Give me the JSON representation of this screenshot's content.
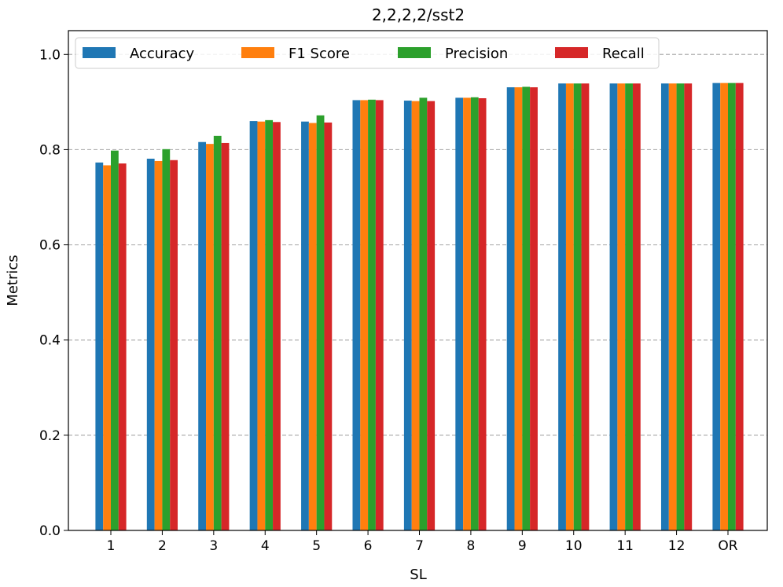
{
  "chart_data": {
    "type": "bar",
    "title": "2,2,2,2/sst2",
    "xlabel": "SL",
    "ylabel": "Metrics",
    "ylim": [
      0,
      1.05
    ],
    "yticks": [
      "0.0",
      "0.2",
      "0.4",
      "0.6",
      "0.8",
      "1.0"
    ],
    "grid": "y-dashed",
    "legend_position": "top",
    "categories": [
      "1",
      "2",
      "3",
      "4",
      "5",
      "6",
      "7",
      "8",
      "9",
      "10",
      "11",
      "12",
      "OR"
    ],
    "series": [
      {
        "name": "Accuracy",
        "color": "#1f77b4",
        "values": [
          0.773,
          0.781,
          0.816,
          0.86,
          0.859,
          0.904,
          0.903,
          0.909,
          0.931,
          0.939,
          0.939,
          0.939,
          0.94
        ]
      },
      {
        "name": "F1 Score",
        "color": "#ff7f0e",
        "values": [
          0.767,
          0.776,
          0.812,
          0.859,
          0.856,
          0.904,
          0.902,
          0.909,
          0.931,
          0.939,
          0.939,
          0.939,
          0.94
        ]
      },
      {
        "name": "Precision",
        "color": "#2ca02c",
        "values": [
          0.798,
          0.801,
          0.829,
          0.862,
          0.872,
          0.905,
          0.909,
          0.91,
          0.932,
          0.939,
          0.939,
          0.939,
          0.94
        ]
      },
      {
        "name": "Recall",
        "color": "#d62728",
        "values": [
          0.771,
          0.778,
          0.814,
          0.858,
          0.857,
          0.904,
          0.902,
          0.908,
          0.931,
          0.939,
          0.939,
          0.939,
          0.94
        ]
      }
    ]
  }
}
